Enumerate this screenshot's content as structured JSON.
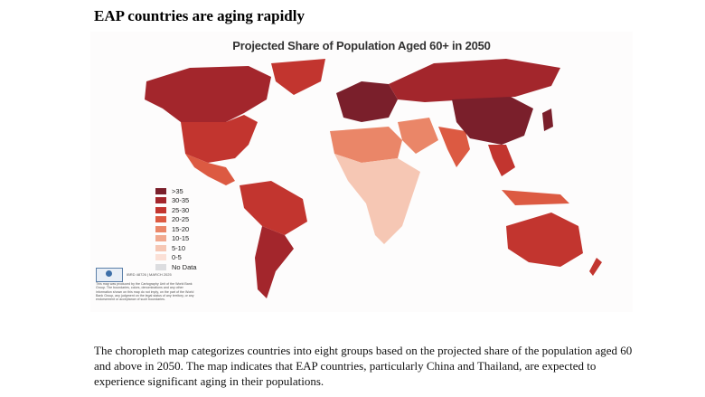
{
  "heading": "EAP countries are aging rapidly",
  "map": {
    "title": "Projected Share of Population Aged 60+ in 2050",
    "legend": [
      {
        "label": ">35",
        "color": "#7a1f2b"
      },
      {
        "label": "30-35",
        "color": "#a3262c"
      },
      {
        "label": "25-30",
        "color": "#c2352f"
      },
      {
        "label": "20-25",
        "color": "#dc5a42"
      },
      {
        "label": "15-20",
        "color": "#ea8668"
      },
      {
        "label": "10-15",
        "color": "#f1a98f"
      },
      {
        "label": "5-10",
        "color": "#f6c7b4"
      },
      {
        "label": "0-5",
        "color": "#fbe0d6"
      },
      {
        "label": "No Data",
        "color": "#dcdde0"
      }
    ],
    "ref": "IBRD 48726 | MARCH 2025",
    "credit": "This map was produced by the Cartography Unit of the World Bank Group. The boundaries, colors, denominations and any other information shown on this map do not imply, on the part of the World Bank Group, any judgment on the legal status of any territory, or any endorsement or acceptance of such boundaries."
  },
  "caption": "The choropleth map categorizes countries into eight groups based on the projected share of the population aged 60 and above in 2050. The map indicates that EAP countries, particularly China and Thailand, are expected to experience significant aging in their populations."
}
